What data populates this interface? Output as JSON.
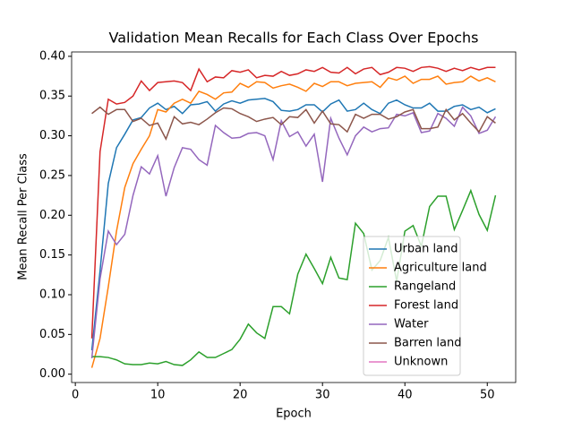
{
  "chart_data": {
    "type": "line",
    "title": "Validation Mean Recalls for Each Class Over Epochs",
    "xlabel": "Epoch",
    "ylabel": "Mean Recall Per Class",
    "x": [
      2,
      3,
      4,
      5,
      6,
      7,
      8,
      9,
      10,
      11,
      12,
      13,
      14,
      15,
      16,
      17,
      18,
      19,
      20,
      21,
      22,
      23,
      24,
      25,
      26,
      27,
      28,
      29,
      30,
      31,
      32,
      33,
      34,
      35,
      36,
      37,
      38,
      39,
      40,
      41,
      42,
      43,
      44,
      45,
      46,
      47,
      48,
      49,
      50,
      51
    ],
    "series": [
      {
        "name": "Urban land",
        "color": "#1f77b4",
        "values": [
          0.03,
          0.13,
          0.24,
          0.285,
          0.302,
          0.32,
          0.323,
          0.335,
          0.341,
          0.333,
          0.337,
          0.328,
          0.339,
          0.34,
          0.343,
          0.331,
          0.34,
          0.344,
          0.341,
          0.345,
          0.346,
          0.347,
          0.343,
          0.332,
          0.331,
          0.333,
          0.339,
          0.339,
          0.33,
          0.34,
          0.345,
          0.331,
          0.333,
          0.341,
          0.333,
          0.328,
          0.341,
          0.345,
          0.339,
          0.335,
          0.335,
          0.341,
          0.331,
          0.331,
          0.337,
          0.339,
          0.333,
          0.336,
          0.329,
          0.334
        ]
      },
      {
        "name": "Agriculture land",
        "color": "#ff7f0e",
        "values": [
          0.008,
          0.045,
          0.11,
          0.18,
          0.235,
          0.265,
          0.283,
          0.3,
          0.333,
          0.33,
          0.341,
          0.346,
          0.341,
          0.356,
          0.352,
          0.346,
          0.354,
          0.355,
          0.366,
          0.361,
          0.368,
          0.367,
          0.36,
          0.363,
          0.365,
          0.361,
          0.356,
          0.366,
          0.362,
          0.368,
          0.368,
          0.363,
          0.366,
          0.367,
          0.368,
          0.361,
          0.373,
          0.37,
          0.375,
          0.366,
          0.371,
          0.371,
          0.375,
          0.365,
          0.367,
          0.368,
          0.375,
          0.369,
          0.373,
          0.368
        ]
      },
      {
        "name": "Rangeland",
        "color": "#2ca02c",
        "values": [
          0.022,
          0.022,
          0.021,
          0.018,
          0.013,
          0.012,
          0.012,
          0.014,
          0.013,
          0.016,
          0.012,
          0.011,
          0.018,
          0.028,
          0.021,
          0.021,
          0.026,
          0.031,
          0.044,
          0.063,
          0.052,
          0.045,
          0.085,
          0.085,
          0.076,
          0.126,
          0.151,
          0.133,
          0.114,
          0.147,
          0.121,
          0.119,
          0.19,
          0.177,
          0.131,
          0.143,
          0.172,
          0.117,
          0.18,
          0.187,
          0.161,
          0.211,
          0.224,
          0.224,
          0.182,
          0.206,
          0.231,
          0.201,
          0.181,
          0.225
        ]
      },
      {
        "name": "Forest land",
        "color": "#d62728",
        "values": [
          0.045,
          0.28,
          0.346,
          0.34,
          0.342,
          0.35,
          0.369,
          0.357,
          0.367,
          0.368,
          0.369,
          0.367,
          0.357,
          0.384,
          0.368,
          0.374,
          0.373,
          0.382,
          0.38,
          0.383,
          0.373,
          0.376,
          0.375,
          0.381,
          0.376,
          0.378,
          0.383,
          0.381,
          0.386,
          0.38,
          0.379,
          0.386,
          0.378,
          0.384,
          0.386,
          0.377,
          0.38,
          0.386,
          0.385,
          0.381,
          0.386,
          0.387,
          0.385,
          0.381,
          0.385,
          0.382,
          0.386,
          0.383,
          0.386,
          0.386
        ]
      },
      {
        "name": "Water",
        "color": "#9467bd",
        "values": [
          0.02,
          0.12,
          0.18,
          0.163,
          0.176,
          0.225,
          0.261,
          0.252,
          0.275,
          0.224,
          0.26,
          0.285,
          0.283,
          0.27,
          0.263,
          0.313,
          0.304,
          0.297,
          0.298,
          0.303,
          0.304,
          0.3,
          0.27,
          0.319,
          0.299,
          0.305,
          0.287,
          0.302,
          0.242,
          0.322,
          0.297,
          0.276,
          0.3,
          0.311,
          0.305,
          0.309,
          0.31,
          0.327,
          0.325,
          0.329,
          0.304,
          0.306,
          0.328,
          0.322,
          0.312,
          0.336,
          0.325,
          0.303,
          0.307,
          0.324
        ]
      },
      {
        "name": "Barren land",
        "color": "#8c564b",
        "values": [
          0.328,
          0.336,
          0.327,
          0.333,
          0.333,
          0.318,
          0.322,
          0.313,
          0.316,
          0.296,
          0.324,
          0.315,
          0.317,
          0.314,
          0.321,
          0.329,
          0.335,
          0.334,
          0.328,
          0.324,
          0.318,
          0.321,
          0.323,
          0.314,
          0.324,
          0.323,
          0.333,
          0.316,
          0.331,
          0.315,
          0.314,
          0.305,
          0.327,
          0.322,
          0.327,
          0.327,
          0.321,
          0.324,
          0.33,
          0.333,
          0.309,
          0.309,
          0.311,
          0.333,
          0.32,
          0.328,
          0.316,
          0.305,
          0.324,
          0.316
        ]
      },
      {
        "name": "Unknown",
        "color": "#e377c2",
        "values": [
          null,
          null,
          null,
          null,
          null,
          null,
          null,
          null,
          null,
          null,
          null,
          null,
          null,
          null,
          null,
          null,
          null,
          null,
          null,
          null,
          null,
          null,
          null,
          null,
          null,
          null,
          null,
          null,
          null,
          null,
          null,
          null,
          null,
          null,
          null,
          null,
          null,
          null,
          null,
          null,
          null,
          null,
          null,
          null,
          null,
          null,
          null,
          null,
          null,
          null
        ]
      }
    ],
    "xlim": [
      -0.45,
      53.45
    ],
    "xticks": [
      0,
      10,
      20,
      30,
      40,
      50
    ],
    "ylim": [
      -0.0105,
      0.4055
    ],
    "yticks": [
      {
        "value": 0,
        "label": "0.00"
      },
      {
        "value": 0.05,
        "label": "0.05"
      },
      {
        "value": 0.1,
        "label": "0.10"
      },
      {
        "value": 0.15,
        "label": "0.15"
      },
      {
        "value": 0.2,
        "label": "0.20"
      },
      {
        "value": 0.25,
        "label": "0.25"
      },
      {
        "value": 0.3,
        "label": "0.30"
      },
      {
        "value": 0.35,
        "label": "0.35"
      },
      {
        "value": 0.4,
        "label": "0.40"
      }
    ],
    "legend": "lower right"
  }
}
